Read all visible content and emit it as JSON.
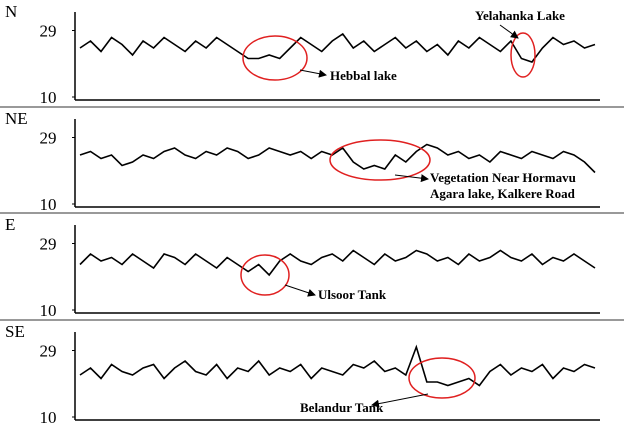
{
  "chart_data": [
    {
      "type": "line",
      "title": "N",
      "ylim": [
        10,
        31
      ],
      "yticks": [
        10,
        29
      ],
      "color": "#000000",
      "values": [
        24,
        26,
        23,
        27,
        25,
        22,
        26,
        24,
        27,
        25,
        23,
        26,
        24,
        27,
        25,
        23,
        21,
        21,
        22,
        21,
        24,
        27,
        25,
        23,
        26,
        28,
        24,
        26,
        23,
        25,
        27,
        24,
        26,
        23,
        25,
        22,
        26,
        24,
        27,
        25,
        23,
        26,
        21,
        20,
        24,
        27,
        25,
        26,
        24,
        25
      ],
      "annotations": [
        "Hebbal lake",
        "Yelahanka Lake"
      ]
    },
    {
      "type": "line",
      "title": "NE",
      "ylim": [
        10,
        31
      ],
      "yticks": [
        10,
        29
      ],
      "color": "#000000",
      "values": [
        24,
        25,
        23,
        24,
        21,
        22,
        24,
        23,
        25,
        26,
        24,
        23,
        25,
        24,
        26,
        25,
        23,
        24,
        26,
        25,
        24,
        25,
        23,
        25,
        24,
        26,
        22,
        20,
        21,
        20,
        24,
        22,
        25,
        27,
        26,
        24,
        25,
        23,
        24,
        22,
        25,
        24,
        23,
        25,
        24,
        23,
        25,
        24,
        22,
        19
      ],
      "annotations": [
        "Vegetation Near Hormavu",
        "Agara lake, Kalkere Road"
      ]
    },
    {
      "type": "line",
      "title": "E",
      "ylim": [
        10,
        31
      ],
      "yticks": [
        10,
        29
      ],
      "color": "#000000",
      "values": [
        23,
        26,
        24,
        25,
        23,
        26,
        24,
        22,
        26,
        25,
        23,
        26,
        24,
        22,
        25,
        23,
        21,
        23,
        20,
        24,
        26,
        24,
        23,
        25,
        26,
        24,
        27,
        25,
        23,
        26,
        24,
        25,
        27,
        26,
        24,
        25,
        23,
        26,
        24,
        25,
        27,
        25,
        24,
        26,
        23,
        25,
        24,
        26,
        24,
        22
      ],
      "annotations": [
        "Ulsoor Tank"
      ]
    },
    {
      "type": "line",
      "title": "SE",
      "ylim": [
        10,
        31
      ],
      "yticks": [
        10,
        29
      ],
      "color": "#000000",
      "values": [
        22,
        24,
        21,
        25,
        23,
        22,
        24,
        25,
        21,
        24,
        26,
        23,
        22,
        25,
        21,
        24,
        23,
        26,
        22,
        24,
        23,
        25,
        21,
        24,
        23,
        22,
        25,
        24,
        26,
        23,
        24,
        22,
        30,
        20,
        20,
        19,
        20,
        21,
        19,
        23,
        25,
        22,
        24,
        23,
        25,
        21,
        24,
        23,
        25,
        24
      ],
      "annotations": [
        "Belandur Tank"
      ]
    }
  ]
}
